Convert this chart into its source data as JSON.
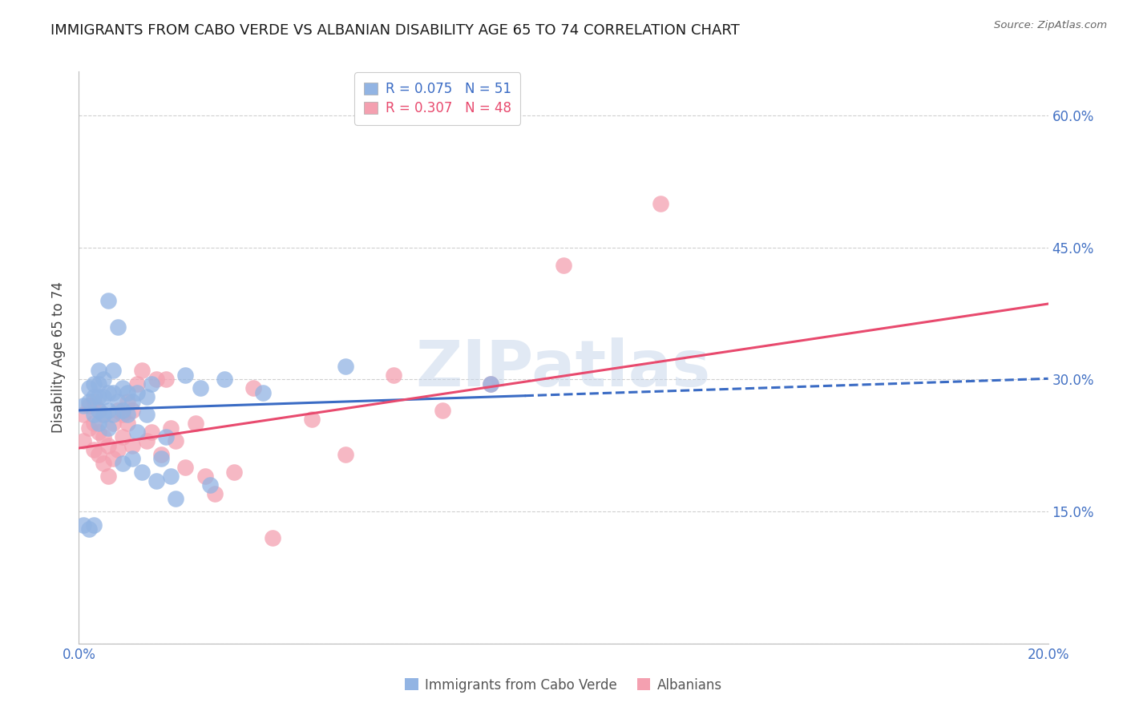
{
  "title": "IMMIGRANTS FROM CABO VERDE VS ALBANIAN DISABILITY AGE 65 TO 74 CORRELATION CHART",
  "source": "Source: ZipAtlas.com",
  "ylabel": "Disability Age 65 to 74",
  "xmin": 0.0,
  "xmax": 0.2,
  "ymin": 0.0,
  "ymax": 0.65,
  "yticks": [
    0.0,
    0.15,
    0.3,
    0.45,
    0.6
  ],
  "ytick_labels": [
    "",
    "15.0%",
    "30.0%",
    "45.0%",
    "60.0%"
  ],
  "xticks": [
    0.0,
    0.04,
    0.08,
    0.12,
    0.16,
    0.2
  ],
  "xtick_labels": [
    "0.0%",
    "",
    "",
    "",
    "",
    "20.0%"
  ],
  "cabo_verde_R": 0.075,
  "cabo_verde_N": 51,
  "albanian_R": 0.307,
  "albanian_N": 48,
  "cabo_verde_color": "#92b4e3",
  "albanian_color": "#f4a0b0",
  "cabo_verde_line_color": "#3a6bc4",
  "albanian_line_color": "#e84a6e",
  "cabo_verde_x": [
    0.001,
    0.001,
    0.002,
    0.002,
    0.002,
    0.003,
    0.003,
    0.003,
    0.003,
    0.004,
    0.004,
    0.004,
    0.004,
    0.004,
    0.005,
    0.005,
    0.005,
    0.006,
    0.006,
    0.006,
    0.006,
    0.007,
    0.007,
    0.007,
    0.008,
    0.008,
    0.009,
    0.009,
    0.009,
    0.01,
    0.01,
    0.011,
    0.011,
    0.012,
    0.012,
    0.013,
    0.014,
    0.014,
    0.015,
    0.016,
    0.017,
    0.018,
    0.019,
    0.02,
    0.022,
    0.025,
    0.027,
    0.03,
    0.038,
    0.055,
    0.085
  ],
  "cabo_verde_y": [
    0.27,
    0.135,
    0.29,
    0.275,
    0.13,
    0.26,
    0.28,
    0.295,
    0.135,
    0.25,
    0.265,
    0.28,
    0.295,
    0.31,
    0.26,
    0.28,
    0.3,
    0.245,
    0.265,
    0.285,
    0.39,
    0.26,
    0.285,
    0.31,
    0.275,
    0.36,
    0.205,
    0.265,
    0.29,
    0.26,
    0.285,
    0.21,
    0.275,
    0.24,
    0.285,
    0.195,
    0.26,
    0.28,
    0.295,
    0.185,
    0.21,
    0.235,
    0.19,
    0.165,
    0.305,
    0.29,
    0.18,
    0.3,
    0.285,
    0.315,
    0.295
  ],
  "albanian_x": [
    0.001,
    0.001,
    0.002,
    0.002,
    0.003,
    0.003,
    0.003,
    0.004,
    0.004,
    0.004,
    0.005,
    0.005,
    0.005,
    0.006,
    0.006,
    0.007,
    0.007,
    0.008,
    0.008,
    0.009,
    0.009,
    0.01,
    0.01,
    0.011,
    0.011,
    0.012,
    0.013,
    0.014,
    0.015,
    0.016,
    0.017,
    0.018,
    0.019,
    0.02,
    0.022,
    0.024,
    0.026,
    0.028,
    0.032,
    0.036,
    0.04,
    0.048,
    0.055,
    0.065,
    0.075,
    0.085,
    0.1,
    0.12
  ],
  "albanian_y": [
    0.23,
    0.26,
    0.245,
    0.27,
    0.22,
    0.25,
    0.275,
    0.215,
    0.24,
    0.265,
    0.205,
    0.235,
    0.26,
    0.19,
    0.225,
    0.21,
    0.25,
    0.22,
    0.265,
    0.235,
    0.26,
    0.25,
    0.275,
    0.225,
    0.265,
    0.295,
    0.31,
    0.23,
    0.24,
    0.3,
    0.215,
    0.3,
    0.245,
    0.23,
    0.2,
    0.25,
    0.19,
    0.17,
    0.195,
    0.29,
    0.12,
    0.255,
    0.215,
    0.305,
    0.265,
    0.295,
    0.43,
    0.5
  ],
  "cabo_verde_line_intercept": 0.265,
  "cabo_verde_line_slope": 0.18,
  "albanian_line_intercept": 0.222,
  "albanian_line_slope": 0.82,
  "cabo_data_cutoff": 0.092,
  "background_color": "#ffffff",
  "grid_color": "#d0d0d0",
  "axis_color": "#bbbbbb",
  "tick_color": "#4472c4",
  "title_fontsize": 13,
  "label_fontsize": 12,
  "tick_fontsize": 12,
  "legend_fontsize": 12,
  "watermark": "ZIPatlas"
}
